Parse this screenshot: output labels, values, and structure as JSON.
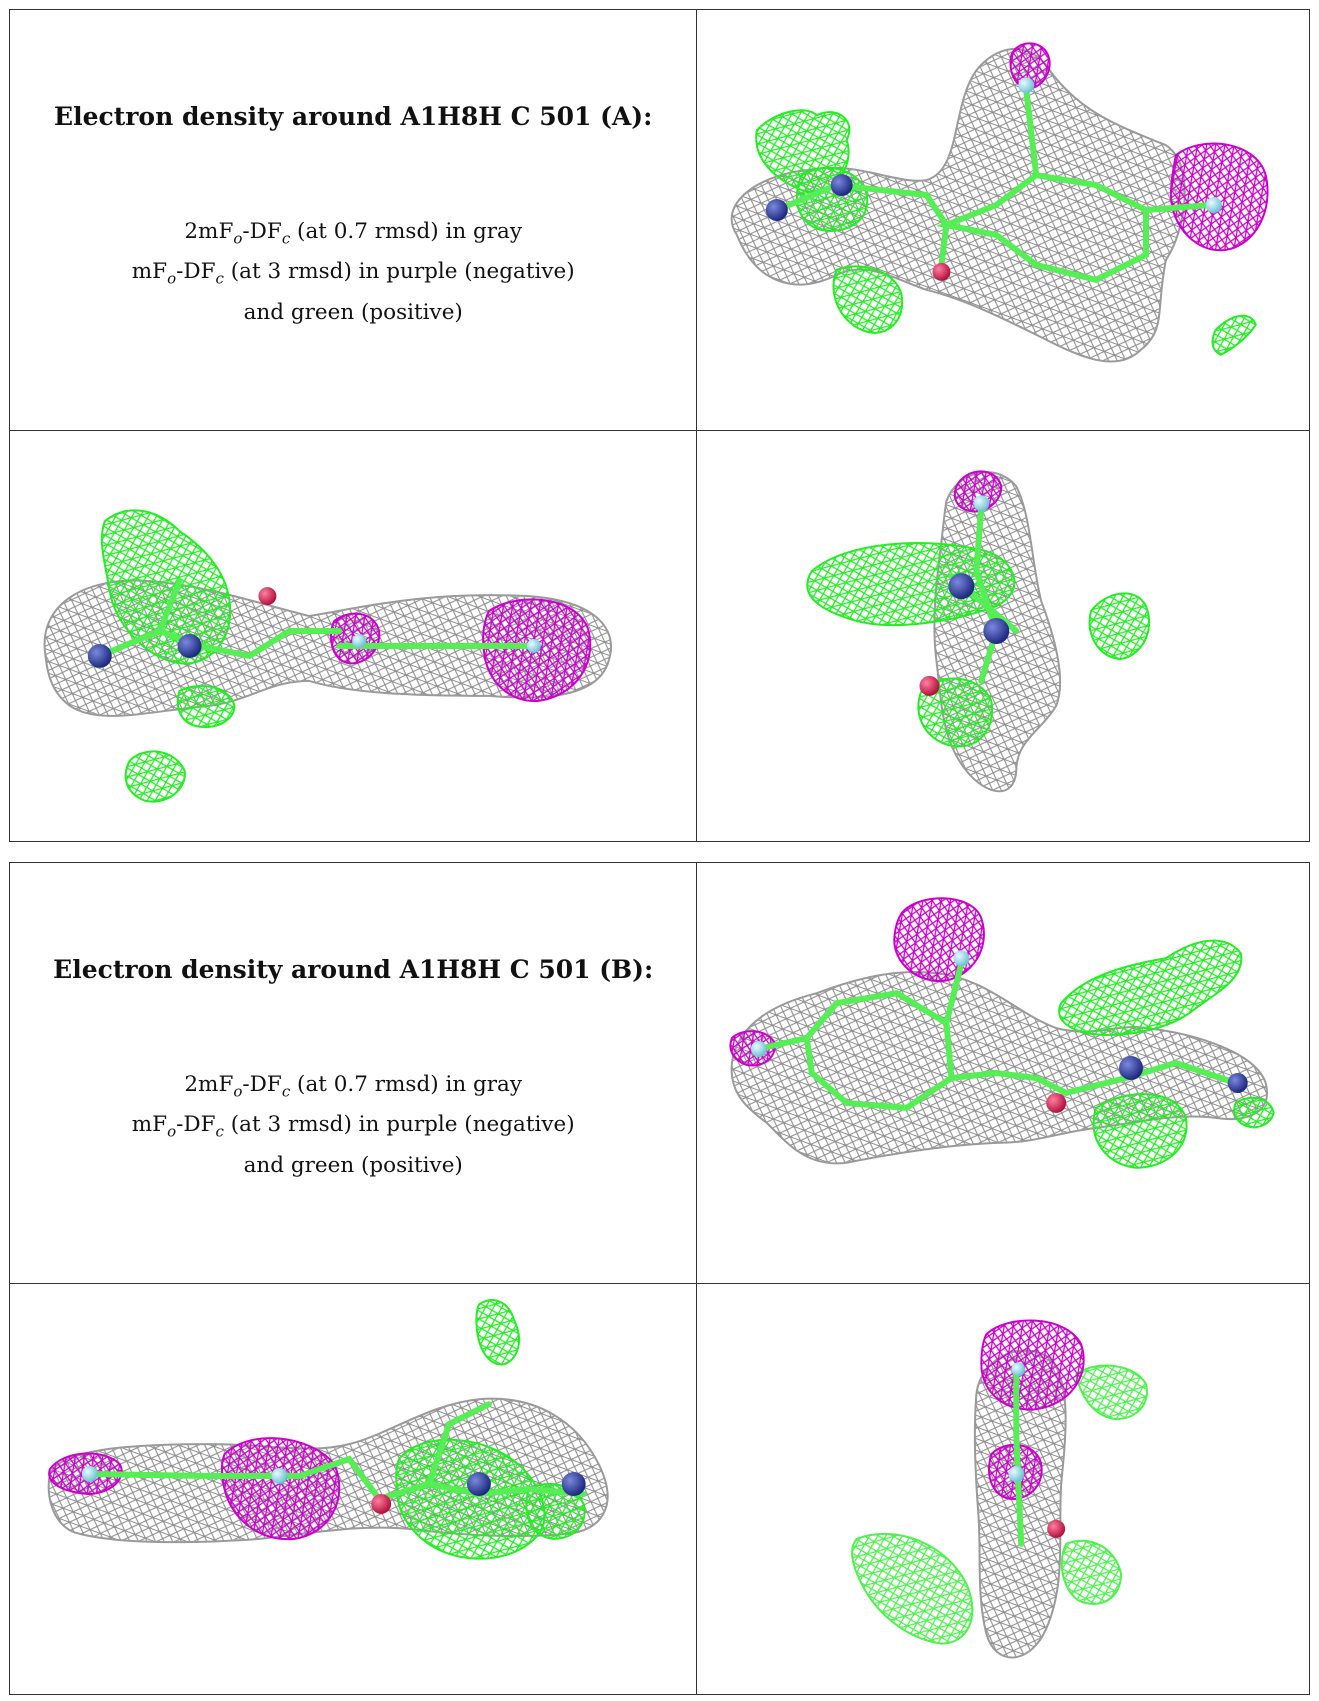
{
  "sections": [
    {
      "title": "Electron density around A1H8H C 501 (A):",
      "line1_pre": "2mF",
      "line1_sub1": "o",
      "line1_mid": "-DF",
      "line1_sub2": "c",
      "line1_post": " (at 0.7 rmsd) in gray",
      "line2_pre": "mF",
      "line2_sub1": "o",
      "line2_mid": "-DF",
      "line2_sub2": "c",
      "line2_post": " (at 3 rmsd) in purple (negative)",
      "line3": "and green (positive)"
    },
    {
      "title": "Electron density around A1H8H C 501 (B):",
      "line1_pre": "2mF",
      "line1_sub1": "o",
      "line1_mid": "-DF",
      "line1_sub2": "c",
      "line1_post": " (at 0.7 rmsd) in gray",
      "line2_pre": "mF",
      "line2_sub1": "o",
      "line2_mid": "-DF",
      "line2_sub2": "c",
      "line2_post": " (at 3 rmsd) in purple (negative)",
      "line3": "and green (positive)"
    }
  ],
  "colors": {
    "density_2fofc": "#9a9a9a",
    "density_negative": "#cc00cc",
    "density_positive": "#22ee22",
    "bond": "#55ee55",
    "nitrogen": "#3344aa",
    "oxygen": "#e8285a",
    "halogen": "#9ee6f0",
    "border": "#333333"
  }
}
